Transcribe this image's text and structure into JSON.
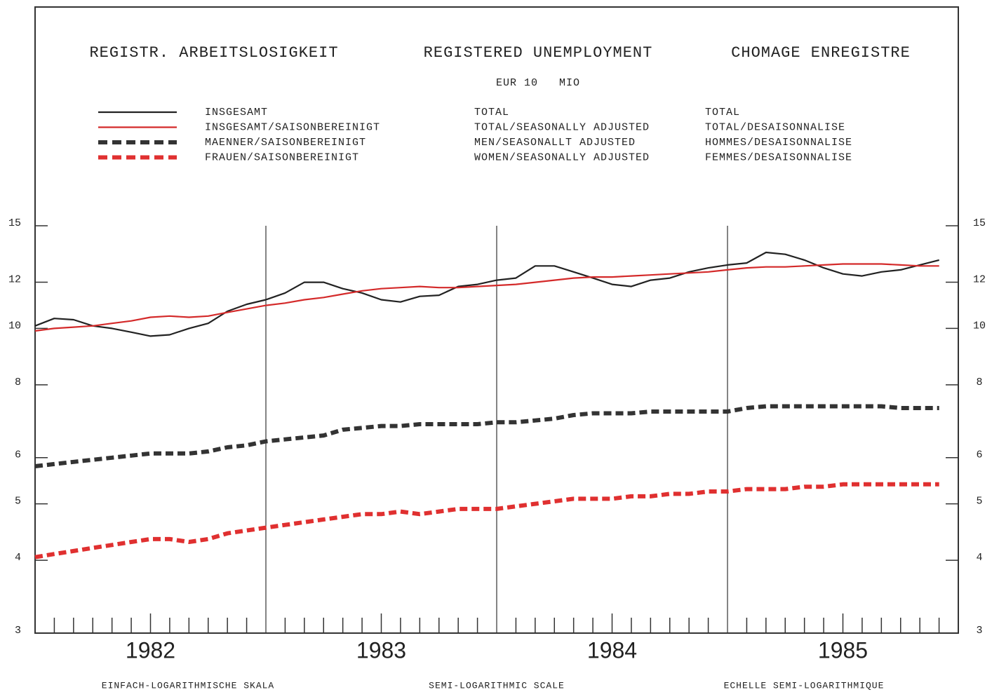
{
  "chart_data": {
    "type": "line",
    "title": [
      "REGISTR. ARBEITSLOSIGKEIT",
      "REGISTERED UNEMPLOYMENT",
      "CHOMAGE ENREGISTRE"
    ],
    "subtitle": "EUR 10   MIO",
    "scale_notes": [
      "EINFACH-LOGARITHMISCHE SKALA",
      "SEMI-LOGARITHMIC SCALE",
      "ECHELLE SEMI-LOGARITHMIQUE"
    ],
    "log_scale": true,
    "xlim": [
      1982,
      1986
    ],
    "xticks": [
      1982,
      1983,
      1984,
      1985,
      1986
    ],
    "year_labels": [
      1982,
      1983,
      1984,
      1985
    ],
    "x": [
      1982.0,
      1982.083,
      1982.167,
      1982.25,
      1982.333,
      1982.417,
      1982.5,
      1982.583,
      1982.667,
      1982.75,
      1982.833,
      1982.917,
      1983.0,
      1983.083,
      1983.167,
      1983.25,
      1983.333,
      1983.417,
      1983.5,
      1983.583,
      1983.667,
      1983.75,
      1983.833,
      1983.917,
      1984.0,
      1984.083,
      1984.167,
      1984.25,
      1984.333,
      1984.417,
      1984.5,
      1984.583,
      1984.667,
      1984.75,
      1984.833,
      1984.917,
      1985.0,
      1985.083,
      1985.167,
      1985.25,
      1985.333,
      1985.417,
      1985.5,
      1985.583,
      1985.667,
      1985.75,
      1985.833,
      1985.917
    ],
    "ylim": [
      3,
      35.6
    ],
    "yticks": [
      3,
      4,
      5,
      6,
      8,
      10,
      12,
      15
    ],
    "series": [
      {
        "name": "INSGESAMT",
        "name_en": "TOTAL",
        "name_fr": "TOTAL",
        "color": "#222222",
        "dashed": false,
        "values": [
          10.1,
          10.4,
          10.35,
          10.1,
          10.0,
          9.85,
          9.7,
          9.75,
          10.0,
          10.2,
          10.7,
          11.0,
          11.2,
          11.5,
          12.0,
          12.0,
          11.7,
          11.5,
          11.2,
          11.1,
          11.35,
          11.4,
          11.8,
          11.9,
          12.1,
          12.2,
          12.8,
          12.8,
          12.5,
          12.2,
          11.9,
          11.8,
          12.1,
          12.2,
          12.5,
          12.7,
          12.85,
          12.95,
          13.5,
          13.4,
          13.1,
          12.7,
          12.4,
          12.3,
          12.5,
          12.6,
          12.85,
          13.1
        ]
      },
      {
        "name": "INSGESAMT/SAISONBEREINIGT",
        "name_en": "TOTAL/SEASONALLY ADJUSTED",
        "name_fr": "TOTAL/DESAISONNALISE",
        "color": "#d42a2a",
        "dashed": false,
        "values": [
          9.9,
          10.0,
          10.05,
          10.1,
          10.2,
          10.3,
          10.45,
          10.5,
          10.45,
          10.5,
          10.65,
          10.8,
          10.95,
          11.05,
          11.2,
          11.3,
          11.45,
          11.6,
          11.7,
          11.75,
          11.8,
          11.75,
          11.75,
          11.8,
          11.85,
          11.9,
          12.0,
          12.1,
          12.2,
          12.25,
          12.25,
          12.3,
          12.35,
          12.4,
          12.45,
          12.5,
          12.6,
          12.7,
          12.75,
          12.75,
          12.8,
          12.85,
          12.9,
          12.9,
          12.9,
          12.85,
          12.8,
          12.8
        ]
      },
      {
        "name": "MAENNER/SAISONBEREINIGT",
        "name_en": "MEN/SEASONALLT ADJUSTED",
        "name_fr": "HOMMES/DESAISONNALISE",
        "color": "#333333",
        "dashed": true,
        "values": [
          5.8,
          5.85,
          5.9,
          5.95,
          6.0,
          6.05,
          6.1,
          6.1,
          6.1,
          6.15,
          6.25,
          6.3,
          6.4,
          6.45,
          6.5,
          6.55,
          6.7,
          6.75,
          6.8,
          6.8,
          6.85,
          6.85,
          6.85,
          6.85,
          6.9,
          6.9,
          6.95,
          7.0,
          7.1,
          7.15,
          7.15,
          7.15,
          7.2,
          7.2,
          7.2,
          7.2,
          7.2,
          7.3,
          7.35,
          7.35,
          7.35,
          7.35,
          7.35,
          7.35,
          7.35,
          7.3,
          7.3,
          7.3
        ]
      },
      {
        "name": "FRAUEN/SAISONBEREINIGT",
        "name_en": "WOMEN/SEASONALLY ADJUSTED",
        "name_fr": "FEMMES/DESAISONNALISE",
        "color": "#e03030",
        "dashed": true,
        "values": [
          4.05,
          4.1,
          4.15,
          4.2,
          4.25,
          4.3,
          4.35,
          4.35,
          4.3,
          4.35,
          4.45,
          4.5,
          4.55,
          4.6,
          4.65,
          4.7,
          4.75,
          4.8,
          4.8,
          4.85,
          4.8,
          4.85,
          4.9,
          4.9,
          4.9,
          4.95,
          5.0,
          5.05,
          5.1,
          5.1,
          5.1,
          5.15,
          5.15,
          5.2,
          5.2,
          5.25,
          5.25,
          5.3,
          5.3,
          5.3,
          5.35,
          5.35,
          5.4,
          5.4,
          5.4,
          5.4,
          5.4,
          5.4
        ]
      }
    ]
  }
}
